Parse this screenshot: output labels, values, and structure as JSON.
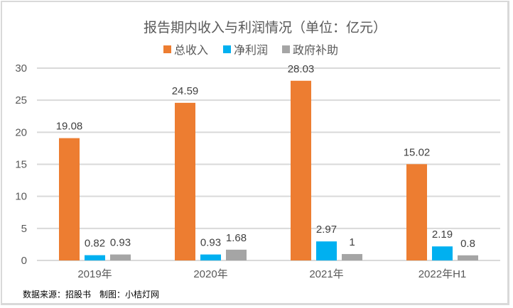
{
  "chart_data": {
    "type": "bar",
    "title": "报告期内收入与利润情况（单位：亿元）",
    "categories": [
      "2019年",
      "2020年",
      "2021年",
      "2022年H1"
    ],
    "series": [
      {
        "name": "总收入",
        "color": "#ed7d31",
        "values": [
          19.08,
          24.59,
          28.03,
          15.02
        ],
        "labels": [
          "19.08",
          "24.59",
          "28.03",
          "15.02"
        ]
      },
      {
        "name": "净利润",
        "color": "#00b0f0",
        "values": [
          0.82,
          0.93,
          2.97,
          2.19
        ],
        "labels": [
          "0.82",
          "0.93",
          "2.97",
          "2.19"
        ]
      },
      {
        "name": "政府补助",
        "color": "#a5a5a5",
        "values": [
          0.93,
          1.68,
          1,
          0.8
        ],
        "labels": [
          "0.93",
          "1.68",
          "1",
          "0.8"
        ]
      }
    ],
    "ylim": [
      0,
      30
    ],
    "yticks": [
      "0",
      "5",
      "10",
      "15",
      "20",
      "25",
      "30"
    ],
    "ytick_values": [
      0,
      5,
      10,
      15,
      20,
      25,
      30
    ],
    "xlabel": "",
    "ylabel": "",
    "grid": true,
    "legend_position": "top-center"
  },
  "footer": {
    "source": "数据来源：招股书　制图：小桔灯网"
  }
}
